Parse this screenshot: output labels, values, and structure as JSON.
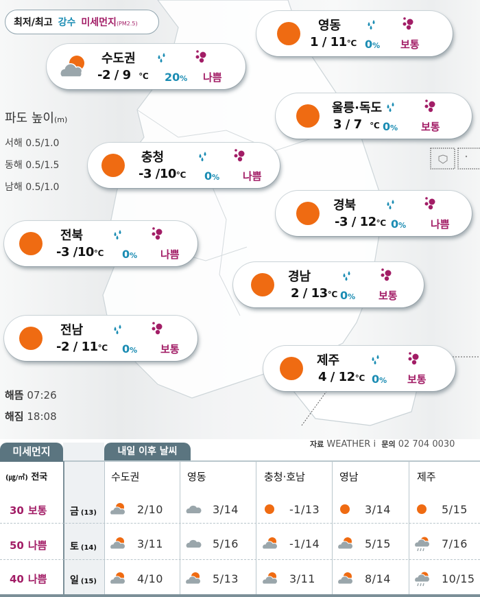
{
  "legend": {
    "minmax": "최저/최고",
    "precip": "강수",
    "dust": "미세먼지",
    "dust_unit": "(PM2.5)"
  },
  "colors": {
    "sun": "#ef6b12",
    "precip": "#1a8cb3",
    "dust": "#a21d66",
    "tab_bg": "#5b7580"
  },
  "regions": [
    {
      "name": "수도권",
      "temp": "-2 / 9",
      "unit": "℃",
      "precip": "20",
      "dust": "나쁨",
      "icon": "partly-cloudy-icon"
    },
    {
      "name": "영동",
      "temp": "1 / 11",
      "unit": "℃",
      "precip": "0",
      "dust": "보통",
      "icon": "sun-icon"
    },
    {
      "name": "울릉·독도",
      "temp": "3 / 7",
      "unit": "℃",
      "precip": "0",
      "dust": "보통",
      "icon": "sun-icon"
    },
    {
      "name": "충청",
      "temp": "-3 /10",
      "unit": "℃",
      "precip": "0",
      "dust": "나쁨",
      "icon": "sun-icon"
    },
    {
      "name": "경북",
      "temp": "-3 / 12",
      "unit": "℃",
      "precip": "0",
      "dust": "나쁨",
      "icon": "sun-icon"
    },
    {
      "name": "전북",
      "temp": "-3 /10",
      "unit": "℃",
      "precip": "0",
      "dust": "나쁨",
      "icon": "sun-icon"
    },
    {
      "name": "경남",
      "temp": "2 / 13",
      "unit": "℃",
      "precip": "0",
      "dust": "보통",
      "icon": "sun-icon"
    },
    {
      "name": "전남",
      "temp": "-2 / 11",
      "unit": "℃",
      "precip": "0",
      "dust": "보통",
      "icon": "sun-icon"
    },
    {
      "name": "제주",
      "temp": "4 / 12",
      "unit": "℃",
      "precip": "0",
      "dust": "보통",
      "icon": "sun-icon"
    }
  ],
  "percent": "%",
  "waves": {
    "title": "파도 높이",
    "unit": "(m)",
    "rows": [
      {
        "sea": "서해",
        "value": "0.5/1.0"
      },
      {
        "sea": "동해",
        "value": "0.5/1.5"
      },
      {
        "sea": "남해",
        "value": "0.5/1.0"
      }
    ]
  },
  "sun": {
    "rise_label": "해뜸",
    "rise": "07:26",
    "set_label": "해짐",
    "set": "18:08"
  },
  "source": {
    "label": "자료",
    "name": "WEATHER i",
    "contact_label": "문의",
    "contact": "02 704 0030"
  },
  "table": {
    "dust_tab": "미세먼지",
    "weather_tab": "내일 이후 날씨",
    "dust_unit": "(㎍/㎥)",
    "dust_scope": "전국",
    "regions": [
      "수도권",
      "영동",
      "충청·호남",
      "영남",
      "제주"
    ],
    "rows": [
      {
        "day": "금",
        "date": "(13)",
        "dust_value": "30",
        "dust_level": "보통",
        "cells": [
          {
            "icon": "partly-cloudy",
            "temp": "2/10"
          },
          {
            "icon": "cloudy",
            "temp": "3/14"
          },
          {
            "icon": "sunny",
            "temp": "-1/13"
          },
          {
            "icon": "sunny",
            "temp": "3/14"
          },
          {
            "icon": "sunny",
            "temp": "5/15"
          }
        ]
      },
      {
        "day": "토",
        "date": "(14)",
        "dust_value": "50",
        "dust_level": "나쁨",
        "cells": [
          {
            "icon": "partly-cloudy",
            "temp": "3/11"
          },
          {
            "icon": "cloudy",
            "temp": "5/16"
          },
          {
            "icon": "partly-cloudy",
            "temp": "-1/14"
          },
          {
            "icon": "partly-cloudy",
            "temp": "5/15"
          },
          {
            "icon": "partly-cloudy-rain",
            "temp": "7/16"
          }
        ]
      },
      {
        "day": "일",
        "date": "(15)",
        "dust_value": "40",
        "dust_level": "나쁨",
        "cells": [
          {
            "icon": "partly-cloudy",
            "temp": "4/10"
          },
          {
            "icon": "partly-cloudy",
            "temp": "5/13"
          },
          {
            "icon": "partly-cloudy",
            "temp": "3/11"
          },
          {
            "icon": "partly-cloudy",
            "temp": "8/14"
          },
          {
            "icon": "partly-cloudy-rain",
            "temp": "10/15"
          }
        ]
      }
    ]
  }
}
